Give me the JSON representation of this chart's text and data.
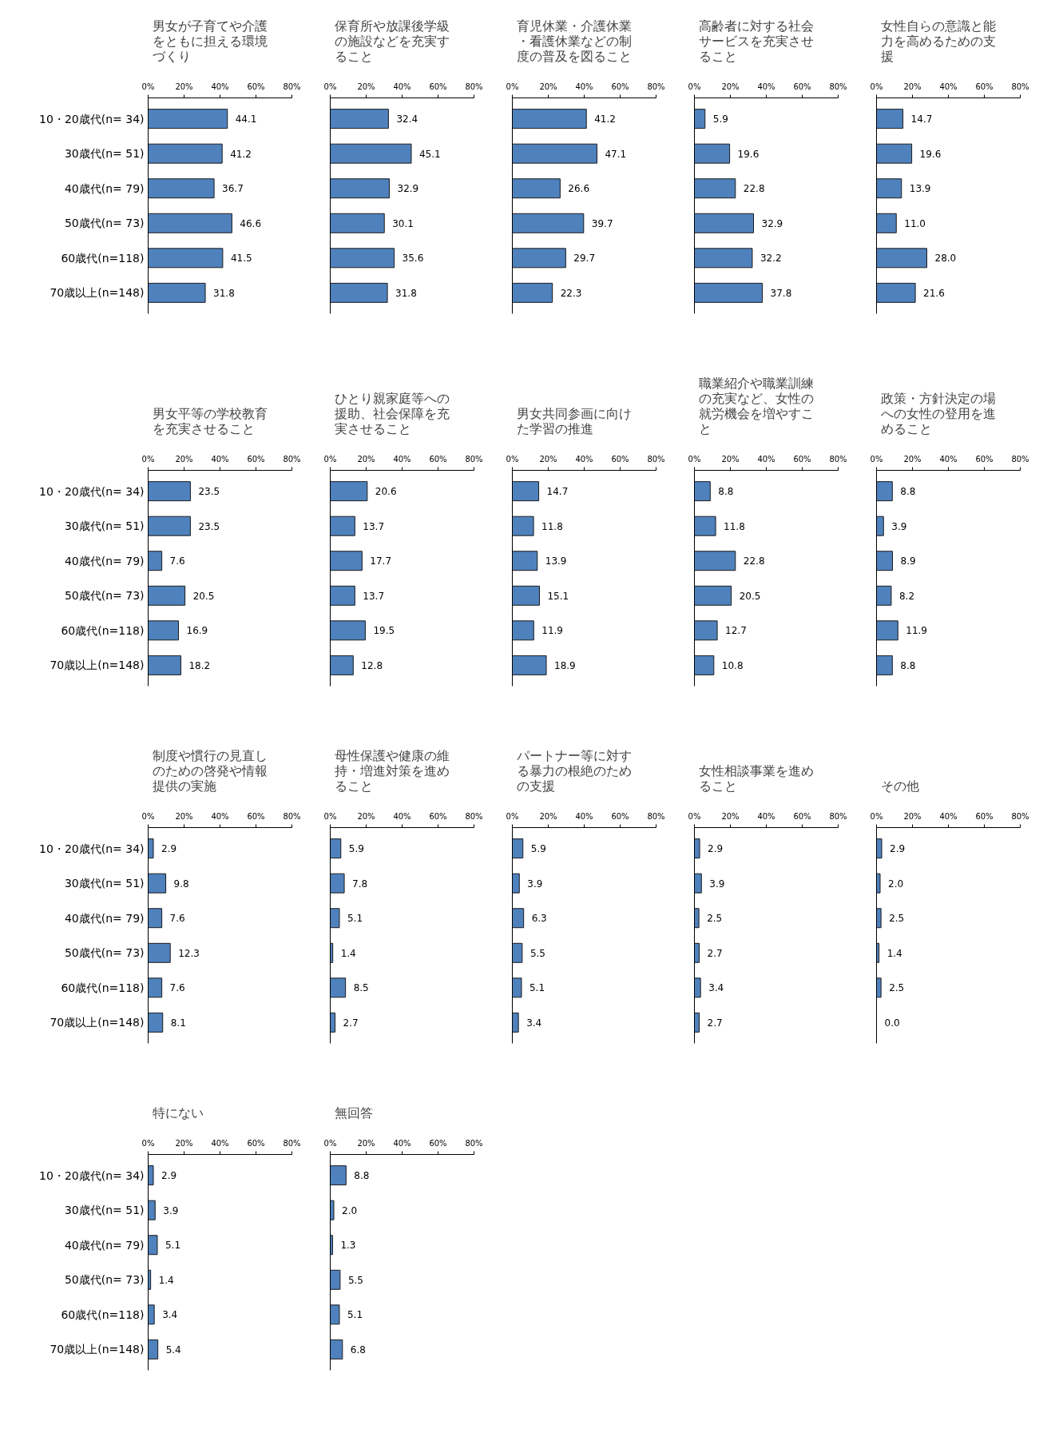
{
  "chart_data": [
    {
      "type": "bar",
      "orientation": "horizontal",
      "title": "男女が子育てや介護をともに担える環境づくり",
      "categories": [
        "10・20歳代(n= 34)",
        "30歳代(n= 51)",
        "40歳代(n= 79)",
        "50歳代(n= 73)",
        "60歳代(n=118)",
        "70歳以上(n=148)"
      ],
      "values": [
        44.1,
        41.2,
        36.7,
        46.6,
        41.5,
        31.8
      ],
      "color": "#4f81bd",
      "xlim": [
        0,
        80
      ],
      "xticks": [
        {
          "value": 0,
          "label": "0%"
        },
        {
          "value": 20,
          "label": "20%"
        },
        {
          "value": 40,
          "label": "40%"
        },
        {
          "value": 60,
          "label": "60%"
        },
        {
          "value": 80,
          "label": "80%"
        }
      ],
      "data_labels": true
    },
    {
      "type": "bar",
      "orientation": "horizontal",
      "title": "保育所や放課後学級の施設などを充実すること",
      "categories": [
        "10・20歳代(n= 34)",
        "30歳代(n= 51)",
        "40歳代(n= 79)",
        "50歳代(n= 73)",
        "60歳代(n=118)",
        "70歳以上(n=148)"
      ],
      "values": [
        32.4,
        45.1,
        32.9,
        30.1,
        35.6,
        31.8
      ],
      "color": "#4f81bd",
      "xlim": [
        0,
        80
      ],
      "xticks": [
        {
          "value": 0,
          "label": "0%"
        },
        {
          "value": 20,
          "label": "20%"
        },
        {
          "value": 40,
          "label": "40%"
        },
        {
          "value": 60,
          "label": "60%"
        },
        {
          "value": 80,
          "label": "80%"
        }
      ],
      "data_labels": true,
      "tick_labels": "x"
    },
    {
      "type": "bar",
      "orientation": "horizontal",
      "title": "育児休業・介護休業・看護休業などの制度の普及を図ること",
      "categories": [
        "10・20歳代(n= 34)",
        "30歳代(n= 51)",
        "40歳代(n= 79)",
        "50歳代(n= 73)",
        "60歳代(n=118)",
        "70歳以上(n=148)"
      ],
      "values": [
        41.2,
        47.1,
        26.6,
        39.7,
        29.7,
        22.3
      ],
      "color": "#4f81bd",
      "xlim": [
        0,
        80
      ],
      "xticks": [
        {
          "value": 0,
          "label": "0%"
        },
        {
          "value": 20,
          "label": "20%"
        },
        {
          "value": 40,
          "label": "40%"
        },
        {
          "value": 60,
          "label": "60%"
        },
        {
          "value": 80,
          "label": "80%"
        }
      ],
      "data_labels": true,
      "tick_labels": "x"
    },
    {
      "type": "bar",
      "orientation": "horizontal",
      "title": "高齢者に対する社会サービスを充実させること",
      "categories": [
        "10・20歳代(n= 34)",
        "30歳代(n= 51)",
        "40歳代(n= 79)",
        "50歳代(n= 73)",
        "60歳代(n=118)",
        "70歳以上(n=148)"
      ],
      "values": [
        5.9,
        19.6,
        22.8,
        32.9,
        32.2,
        37.8
      ],
      "color": "#4f81bd",
      "xlim": [
        0,
        80
      ],
      "xticks": [
        {
          "value": 0,
          "label": "0%"
        },
        {
          "value": 20,
          "label": "20%"
        },
        {
          "value": 40,
          "label": "40%"
        },
        {
          "value": 60,
          "label": "60%"
        },
        {
          "value": 80,
          "label": "80%"
        }
      ],
      "data_labels": true,
      "tick_labels": "x"
    },
    {
      "type": "bar",
      "orientation": "horizontal",
      "title": "女性自らの意識と能力を高めるための支援",
      "categories": [
        "10・20歳代(n= 34)",
        "30歳代(n= 51)",
        "40歳代(n= 79)",
        "50歳代(n= 73)",
        "60歳代(n=118)",
        "70歳以上(n=148)"
      ],
      "values": [
        14.7,
        19.6,
        13.9,
        11.0,
        28.0,
        21.6
      ],
      "value_labels": [
        "14.7",
        "19.6",
        "13.9",
        "11.0",
        "28.0",
        "21.6"
      ],
      "color": "#4f81bd",
      "xlim": [
        0,
        80
      ],
      "xticks": [
        {
          "value": 0,
          "label": "0%"
        },
        {
          "value": 20,
          "label": "20%"
        },
        {
          "value": 40,
          "label": "40%"
        },
        {
          "value": 60,
          "label": "60%"
        },
        {
          "value": 80,
          "label": "80%"
        }
      ],
      "tick_labels": "x"
    },
    {
      "type": "bar",
      "orientation": "horizontal",
      "title": "男女平等の学校教育を充実させること",
      "categories": [
        "10・20歳代(n= 34)",
        "30歳代(n= 51)",
        "40歳代(n= 79)",
        "50歳代(n= 73)",
        "60歳代(n=118)",
        "70歳以上(n=148)"
      ],
      "values": [
        23.5,
        23.5,
        7.6,
        20.5,
        16.9,
        18.2
      ],
      "color": "#4f81bd",
      "xlim": [
        0,
        80
      ],
      "xticks": [
        {
          "value": 0,
          "label": "0%"
        },
        {
          "value": 20,
          "label": "20%"
        },
        {
          "value": 40,
          "label": "40%"
        },
        {
          "value": 60,
          "label": "60%"
        },
        {
          "value": 80,
          "label": "80%"
        }
      ],
      "data_labels": true
    },
    {
      "type": "bar",
      "orientation": "horizontal",
      "title": "ひとり親家庭等への援助、社会保障を充実させること",
      "categories": [
        "10・20歳代(n= 34)",
        "30歳代(n= 51)",
        "40歳代(n= 79)",
        "50歳代(n= 73)",
        "60歳代(n=118)",
        "70歳以上(n=148)"
      ],
      "values": [
        20.6,
        13.7,
        17.7,
        13.7,
        19.5,
        12.8
      ],
      "color": "#4f81bd",
      "xlim": [
        0,
        80
      ],
      "xticks": [
        {
          "value": 0,
          "label": "0%"
        },
        {
          "value": 20,
          "label": "20%"
        },
        {
          "value": 40,
          "label": "40%"
        },
        {
          "value": 60,
          "label": "60%"
        },
        {
          "value": 80,
          "label": "80%"
        }
      ],
      "data_labels": true,
      "tick_labels": "x"
    },
    {
      "type": "bar",
      "orientation": "horizontal",
      "title": "男女共同参画に向けた学習の推進",
      "categories": [
        "10・20歳代(n= 34)",
        "30歳代(n= 51)",
        "40歳代(n= 79)",
        "50歳代(n= 73)",
        "60歳代(n=118)",
        "70歳以上(n=148)"
      ],
      "values": [
        14.7,
        11.8,
        13.9,
        15.1,
        11.9,
        18.9
      ],
      "color": "#4f81bd",
      "xlim": [
        0,
        80
      ],
      "xticks": [
        {
          "value": 0,
          "label": "0%"
        },
        {
          "value": 20,
          "label": "20%"
        },
        {
          "value": 40,
          "label": "40%"
        },
        {
          "value": 60,
          "label": "60%"
        },
        {
          "value": 80,
          "label": "80%"
        }
      ],
      "data_labels": true,
      "tick_labels": "x"
    },
    {
      "type": "bar",
      "orientation": "horizontal",
      "title": "職業紹介や職業訓練の充実など、女性の就労機会を増やすこと",
      "categories": [
        "10・20歳代(n= 34)",
        "30歳代(n= 51)",
        "40歳代(n= 79)",
        "50歳代(n= 73)",
        "60歳代(n=118)",
        "70歳以上(n=148)"
      ],
      "values": [
        8.8,
        11.8,
        22.8,
        20.5,
        12.7,
        10.8
      ],
      "color": "#4f81bd",
      "xlim": [
        0,
        80
      ],
      "xticks": [
        {
          "value": 0,
          "label": "0%"
        },
        {
          "value": 20,
          "label": "20%"
        },
        {
          "value": 40,
          "label": "40%"
        },
        {
          "value": 60,
          "label": "60%"
        },
        {
          "value": 80,
          "label": "80%"
        }
      ],
      "data_labels": true,
      "tick_labels": "x"
    },
    {
      "type": "bar",
      "orientation": "horizontal",
      "title": "政策・方針決定の場への女性の登用を進めること",
      "categories": [
        "10・20歳代(n= 34)",
        "30歳代(n= 51)",
        "40歳代(n= 79)",
        "50歳代(n= 73)",
        "60歳代(n=118)",
        "70歳以上(n=148)"
      ],
      "values": [
        8.8,
        3.9,
        8.9,
        8.2,
        11.9,
        8.8
      ],
      "color": "#4f81bd",
      "xlim": [
        0,
        80
      ],
      "xticks": [
        {
          "value": 0,
          "label": "0%"
        },
        {
          "value": 20,
          "label": "20%"
        },
        {
          "value": 40,
          "label": "40%"
        },
        {
          "value": 60,
          "label": "60%"
        },
        {
          "value": 80,
          "label": "80%"
        }
      ],
      "data_labels": true,
      "tick_labels": "x"
    },
    {
      "type": "bar",
      "orientation": "horizontal",
      "title": "制度や慣行の見直しのための啓発や情報提供の実施",
      "categories": [
        "10・20歳代(n= 34)",
        "30歳代(n= 51)",
        "40歳代(n= 79)",
        "50歳代(n= 73)",
        "60歳代(n=118)",
        "70歳以上(n=148)"
      ],
      "values": [
        2.9,
        9.8,
        7.6,
        12.3,
        7.6,
        8.1
      ],
      "color": "#4f81bd",
      "xlim": [
        0,
        80
      ],
      "xticks": [
        {
          "value": 0,
          "label": "0%"
        },
        {
          "value": 20,
          "label": "20%"
        },
        {
          "value": 40,
          "label": "40%"
        },
        {
          "value": 60,
          "label": "60%"
        },
        {
          "value": 80,
          "label": "80%"
        }
      ],
      "data_labels": true
    },
    {
      "type": "bar",
      "orientation": "horizontal",
      "title": "母性保護や健康の維持・増進対策を進めること",
      "categories": [
        "10・20歳代(n= 34)",
        "30歳代(n= 51)",
        "40歳代(n= 79)",
        "50歳代(n= 73)",
        "60歳代(n=118)",
        "70歳以上(n=148)"
      ],
      "values": [
        5.9,
        7.8,
        5.1,
        1.4,
        8.5,
        2.7
      ],
      "color": "#4f81bd",
      "xlim": [
        0,
        80
      ],
      "xticks": [
        {
          "value": 0,
          "label": "0%"
        },
        {
          "value": 20,
          "label": "20%"
        },
        {
          "value": 40,
          "label": "40%"
        },
        {
          "value": 60,
          "label": "60%"
        },
        {
          "value": 80,
          "label": "80%"
        }
      ],
      "data_labels": true,
      "tick_labels": "x"
    },
    {
      "type": "bar",
      "orientation": "horizontal",
      "title": "パートナー等に対する暴力の根絶のための支援",
      "categories": [
        "10・20歳代(n= 34)",
        "30歳代(n= 51)",
        "40歳代(n= 79)",
        "50歳代(n= 73)",
        "60歳代(n=118)",
        "70歳以上(n=148)"
      ],
      "values": [
        5.9,
        3.9,
        6.3,
        5.5,
        5.1,
        3.4
      ],
      "color": "#4f81bd",
      "xlim": [
        0,
        80
      ],
      "xticks": [
        {
          "value": 0,
          "label": "0%"
        },
        {
          "value": 20,
          "label": "20%"
        },
        {
          "value": 40,
          "label": "40%"
        },
        {
          "value": 60,
          "label": "60%"
        },
        {
          "value": 80,
          "label": "80%"
        }
      ],
      "data_labels": true,
      "tick_labels": "x"
    },
    {
      "type": "bar",
      "orientation": "horizontal",
      "title": "女性相談事業を進めること",
      "categories": [
        "10・20歳代(n= 34)",
        "30歳代(n= 51)",
        "40歳代(n= 79)",
        "50歳代(n= 73)",
        "60歳代(n=118)",
        "70歳以上(n=148)"
      ],
      "values": [
        2.9,
        3.9,
        2.5,
        2.7,
        3.4,
        2.7
      ],
      "color": "#4f81bd",
      "xlim": [
        0,
        80
      ],
      "xticks": [
        {
          "value": 0,
          "label": "0%"
        },
        {
          "value": 20,
          "label": "20%"
        },
        {
          "value": 40,
          "label": "40%"
        },
        {
          "value": 60,
          "label": "60%"
        },
        {
          "value": 80,
          "label": "80%"
        }
      ],
      "data_labels": true,
      "tick_labels": "x"
    },
    {
      "type": "bar",
      "orientation": "horizontal",
      "title": "その他",
      "categories": [
        "10・20歳代(n= 34)",
        "30歳代(n= 51)",
        "40歳代(n= 79)",
        "50歳代(n= 73)",
        "60歳代(n=118)",
        "70歳以上(n=148)"
      ],
      "values": [
        2.9,
        2.0,
        2.5,
        1.4,
        2.5,
        0.0
      ],
      "value_labels": [
        "2.9",
        "2.0",
        "2.5",
        "1.4",
        "2.5",
        "0.0"
      ],
      "color": "#4f81bd",
      "xlim": [
        0,
        80
      ],
      "xticks": [
        {
          "value": 0,
          "label": "0%"
        },
        {
          "value": 20,
          "label": "20%"
        },
        {
          "value": 40,
          "label": "40%"
        },
        {
          "value": 60,
          "label": "60%"
        },
        {
          "value": 80,
          "label": "80%"
        }
      ],
      "tick_labels": "x"
    },
    {
      "type": "bar",
      "orientation": "horizontal",
      "title": "特にない",
      "categories": [
        "10・20歳代(n= 34)",
        "30歳代(n= 51)",
        "40歳代(n= 79)",
        "50歳代(n= 73)",
        "60歳代(n=118)",
        "70歳以上(n=148)"
      ],
      "values": [
        2.9,
        3.9,
        5.1,
        1.4,
        3.4,
        5.4
      ],
      "color": "#4f81bd",
      "xlim": [
        0,
        80
      ],
      "xticks": [
        {
          "value": 0,
          "label": "0%"
        },
        {
          "value": 20,
          "label": "20%"
        },
        {
          "value": 40,
          "label": "40%"
        },
        {
          "value": 60,
          "label": "60%"
        },
        {
          "value": 80,
          "label": "80%"
        }
      ],
      "data_labels": true
    },
    {
      "type": "bar",
      "orientation": "horizontal",
      "title": "無回答",
      "categories": [
        "10・20歳代(n= 34)",
        "30歳代(n= 51)",
        "40歳代(n= 79)",
        "50歳代(n= 73)",
        "60歳代(n=118)",
        "70歳以上(n=148)"
      ],
      "values": [
        8.8,
        2.0,
        1.3,
        5.5,
        5.1,
        6.8
      ],
      "value_labels": [
        "8.8",
        "2.0",
        "1.3",
        "5.5",
        "5.1",
        "6.8"
      ],
      "color": "#4f81bd",
      "xlim": [
        0,
        80
      ],
      "xticks": [
        {
          "value": 0,
          "label": "0%"
        },
        {
          "value": 20,
          "label": "20%"
        },
        {
          "value": 40,
          "label": "40%"
        },
        {
          "value": 60,
          "label": "60%"
        },
        {
          "value": 80,
          "label": "80%"
        }
      ],
      "tick_labels": "x"
    }
  ]
}
